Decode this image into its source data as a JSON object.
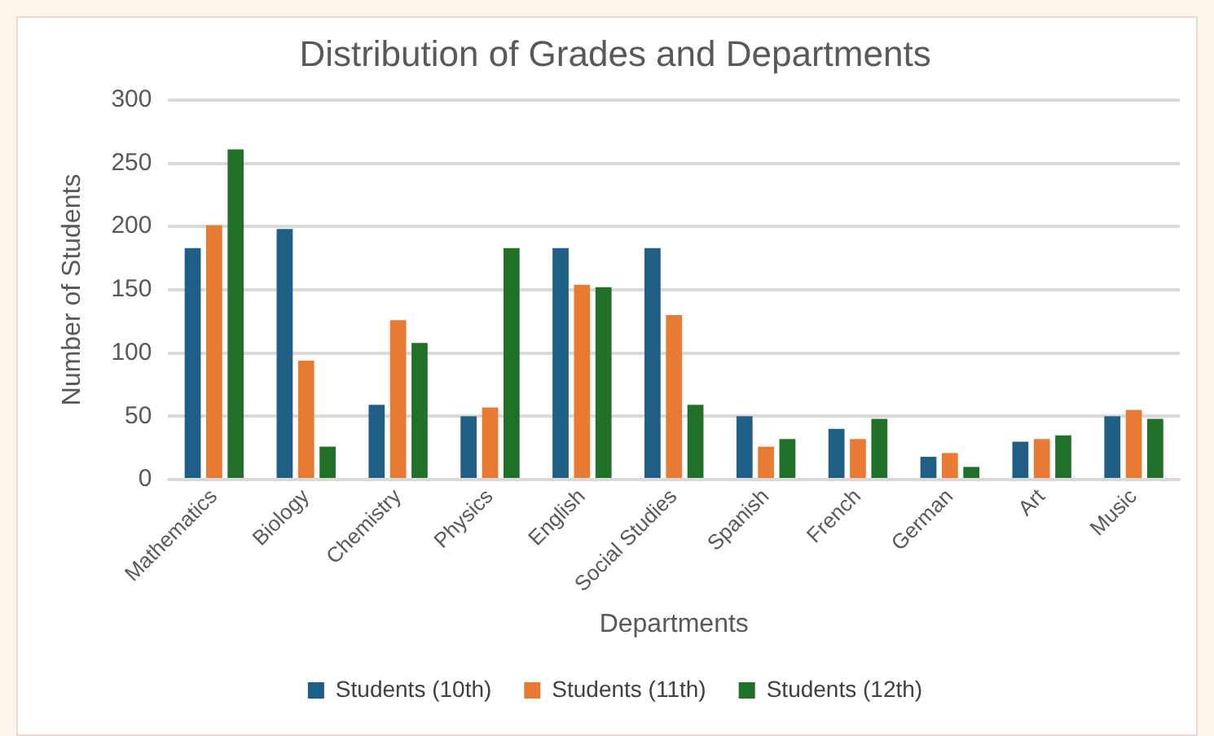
{
  "chart_data": {
    "type": "bar",
    "title": "Distribution of Grades and Departments",
    "xlabel": "Departments",
    "ylabel": "Number of Students",
    "categories": [
      "Mathematics",
      "Biology",
      "Chemistry",
      "Physics",
      "English",
      "Social Studies",
      "Spanish",
      "French",
      "German",
      "Art",
      "Music"
    ],
    "series": [
      {
        "name": "Students (10th)",
        "color": "#1f5f85",
        "values": [
          183,
          198,
          59,
          50,
          183,
          183,
          50,
          40,
          18,
          30,
          50
        ]
      },
      {
        "name": "Students (11th)",
        "color": "#e97a33",
        "values": [
          201,
          94,
          126,
          57,
          154,
          130,
          26,
          32,
          21,
          32,
          55
        ]
      },
      {
        "name": "Students (12th)",
        "color": "#207028",
        "values": [
          261,
          26,
          108,
          183,
          152,
          59,
          32,
          48,
          10,
          35,
          48
        ]
      }
    ],
    "ylim": [
      0,
      300
    ],
    "yticks": [
      0,
      50,
      100,
      150,
      200,
      250,
      300
    ],
    "grid": "y",
    "legend": "bottom"
  }
}
